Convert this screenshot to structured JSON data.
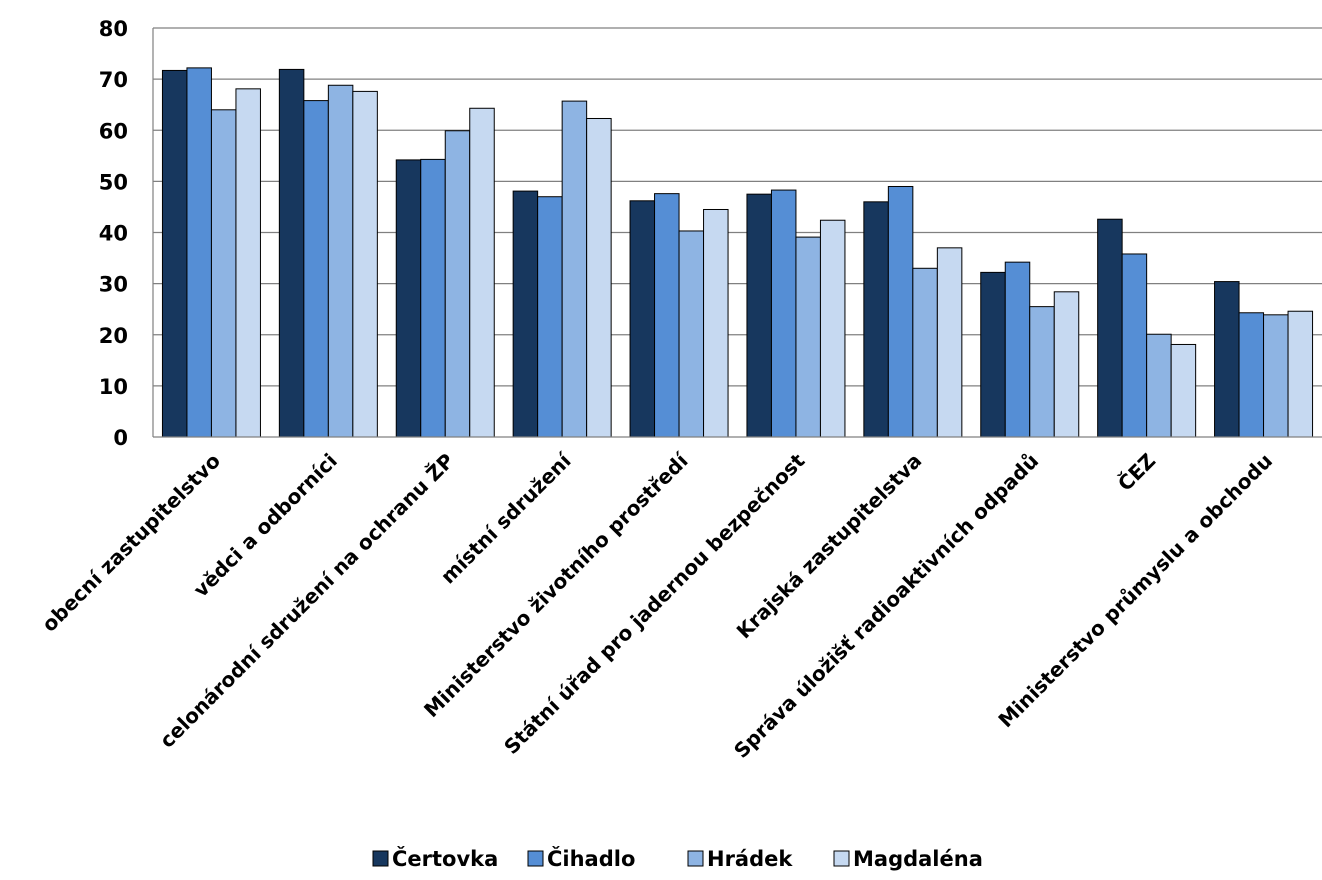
{
  "chart_data": {
    "type": "bar",
    "title": "",
    "xlabel": "",
    "ylabel": "",
    "ylim": [
      0,
      80
    ],
    "yticks": [
      0,
      10,
      20,
      30,
      40,
      50,
      60,
      70,
      80
    ],
    "grid": true,
    "legend_position": "bottom",
    "categories": [
      "obecní zastupitelstvo",
      "vědci a odborníci",
      "celonárodní sdružení na ochranu ŽP",
      "místní sdružení",
      "Ministerstvo životního prostředí",
      "Státní úřad pro jadernou bezpečnost",
      "Krajská zastupitelstva",
      "Správa úložišť radioaktivních odpadů",
      "ČEZ",
      "Ministerstvo průmyslu a obchodu"
    ],
    "series": [
      {
        "name": "Čertovka",
        "color": "#17375e",
        "values": [
          71.7,
          71.9,
          54.2,
          48.1,
          46.2,
          47.5,
          46.0,
          32.2,
          42.6,
          30.4
        ]
      },
      {
        "name": "Čihadlo",
        "color": "#558ed5",
        "values": [
          72.2,
          65.8,
          54.3,
          47.0,
          47.6,
          48.3,
          49.0,
          34.2,
          35.8,
          24.3
        ]
      },
      {
        "name": "Hrádek",
        "color": "#8eb4e3",
        "values": [
          64.0,
          68.8,
          59.9,
          65.7,
          40.3,
          39.1,
          33.0,
          25.5,
          20.1,
          23.9
        ]
      },
      {
        "name": "Magdaléna",
        "color": "#c6d9f1",
        "values": [
          68.1,
          67.6,
          64.3,
          62.3,
          44.5,
          42.4,
          37.0,
          28.4,
          18.1,
          24.6
        ]
      }
    ]
  }
}
